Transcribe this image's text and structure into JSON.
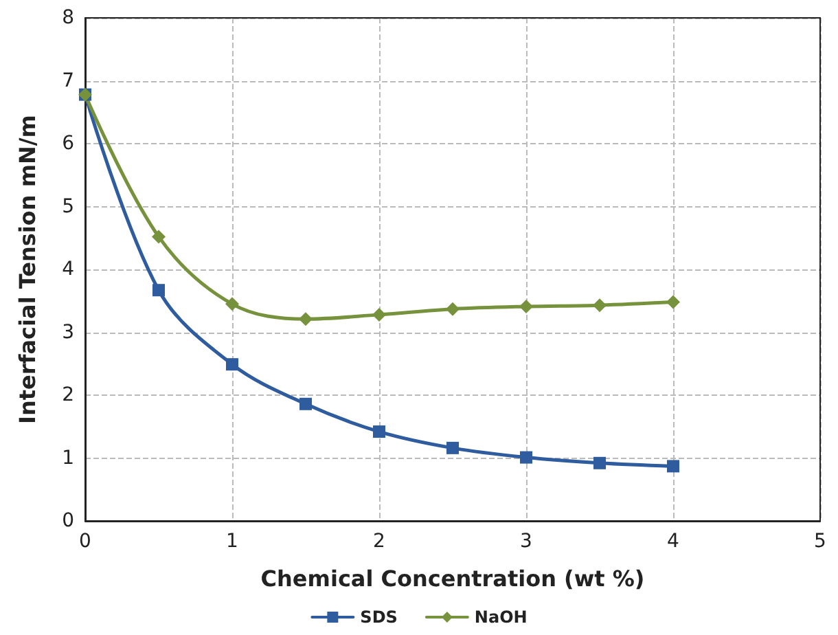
{
  "chart_data": {
    "type": "line",
    "xlabel": "Chemical Concentration (wt %)",
    "ylabel": "Interfacial Tension mN/m",
    "x": [
      0,
      0.5,
      1,
      1.5,
      2,
      2.5,
      3,
      3.5,
      4
    ],
    "series": [
      {
        "name": "SDS",
        "color": "#2e5c9e",
        "marker": "square",
        "values": [
          6.78,
          3.67,
          2.49,
          1.86,
          1.42,
          1.16,
          1.01,
          0.92,
          0.87
        ]
      },
      {
        "name": "NaOH",
        "color": "#76923c",
        "marker": "diamond",
        "values": [
          6.78,
          4.52,
          3.45,
          3.21,
          3.28,
          3.37,
          3.41,
          3.43,
          3.48
        ]
      }
    ],
    "xlim": [
      0,
      5
    ],
    "xticks": [
      0,
      1,
      2,
      3,
      4,
      5
    ],
    "ylim": [
      0,
      8
    ],
    "yticks": [
      0,
      1,
      2,
      3,
      4,
      5,
      6,
      7,
      8
    ],
    "grid": true,
    "legend": "bottom",
    "line_style": "solid"
  }
}
